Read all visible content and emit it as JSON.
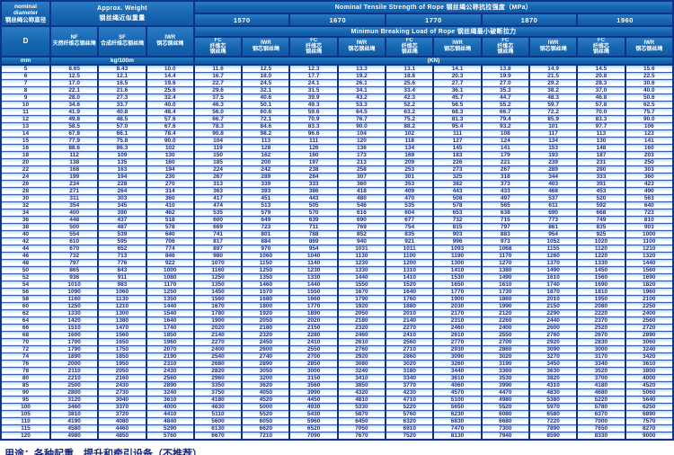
{
  "header": {
    "nominal_diameter": "nominal\ndiameter\n钢丝绳公称直径",
    "d_label": "D",
    "mm_label": "mm",
    "approx_weight": "Approx. Weight\n钢丝绳近似重量",
    "nf_label": "NF\n天然纤维芯钢丝绳",
    "sf_label": "SF\n合成纤维芯钢丝绳",
    "iwr_weight_label": "IWR\n钢芯钢丝绳",
    "kg_label": "kg/100m",
    "tensile_title": "Nominal Tensile Strength of Rope 钢丝绳公称抗拉强度（MPa）",
    "breaking_title": "Minimun Breaking Load of Rope 钢丝绳最小破断拉力",
    "grades": [
      "1570",
      "1670",
      "1770",
      "1870",
      "1960"
    ],
    "fc_label": "FC\n纤维芯\n钢丝绳",
    "iwr_label": "IWR\n钢芯钢丝绳",
    "kn_label": "(KN)"
  },
  "colors": {
    "header_blue": "#1565b0",
    "border_navy": "#0e3487",
    "data_text_navy": "#1e2f85",
    "row_stripe_blue": "#a8cfeb"
  },
  "table": {
    "column_keys": [
      "D_mm",
      "NF",
      "SF",
      "IWR",
      "FC_1570",
      "IWR_1570",
      "FC_1670",
      "IWR_1670",
      "FC_1770",
      "IWR_1770",
      "FC_1870",
      "IWR_1870",
      "FC_1960",
      "IWR_1960"
    ],
    "rows": [
      [
        "5",
        "8.65",
        "8.43",
        "10.0",
        "11.6",
        "12.5",
        "12.3",
        "13.3",
        "13.1",
        "14.1",
        "13.8",
        "14.9",
        "14.5",
        "15.6"
      ],
      [
        "6",
        "12.5",
        "12.1",
        "14.4",
        "16.7",
        "18.0",
        "17.7",
        "19.2",
        "18.8",
        "20.3",
        "19.9",
        "21.5",
        "20.8",
        "22.5"
      ],
      [
        "7",
        "17.0",
        "16.5",
        "19.6",
        "22.7",
        "24.5",
        "24.1",
        "26.1",
        "25.6",
        "27.7",
        "27.0",
        "29.2",
        "28.3",
        "30.6"
      ],
      [
        "8",
        "22.1",
        "21.6",
        "25.6",
        "29.6",
        "32.1",
        "31.5",
        "34.1",
        "33.4",
        "36.1",
        "35.3",
        "38.2",
        "37.0",
        "40.0"
      ],
      [
        "9",
        "28.0",
        "27.3",
        "32.4",
        "37.5",
        "40.6",
        "39.9",
        "43.2",
        "42.3",
        "45.7",
        "44.7",
        "48.3",
        "46.8",
        "50.6"
      ],
      [
        "10",
        "34.6",
        "33.7",
        "40.0",
        "46.3",
        "50.1",
        "49.3",
        "53.3",
        "52.2",
        "56.5",
        "55.2",
        "59.7",
        "57.8",
        "62.5"
      ],
      [
        "11",
        "41.9",
        "40.8",
        "48.4",
        "56.0",
        "60.6",
        "59.6",
        "64.5",
        "63.2",
        "68.3",
        "66.7",
        "72.2",
        "70.0",
        "75.7"
      ],
      [
        "12",
        "49.8",
        "48.5",
        "57.6",
        "66.7",
        "72.1",
        "70.9",
        "76.7",
        "75.2",
        "81.3",
        "79.4",
        "85.9",
        "83.3",
        "90.0"
      ],
      [
        "13",
        "58.5",
        "57.0",
        "67.6",
        "78.3",
        "84.6",
        "83.3",
        "90.0",
        "88.2",
        "95.4",
        "93.2",
        "101",
        "97.7",
        "106"
      ],
      [
        "14",
        "67.8",
        "66.1",
        "78.4",
        "90.8",
        "98.2",
        "96.6",
        "104",
        "102",
        "111",
        "108",
        "117",
        "113",
        "123"
      ],
      [
        "15",
        "77.9",
        "75.8",
        "90.0",
        "104",
        "113",
        "111",
        "120",
        "118",
        "127",
        "124",
        "134",
        "130",
        "141"
      ],
      [
        "16",
        "88.6",
        "86.3",
        "102",
        "119",
        "128",
        "126",
        "136",
        "134",
        "145",
        "141",
        "153",
        "148",
        "160"
      ],
      [
        "18",
        "112",
        "109",
        "130",
        "150",
        "162",
        "160",
        "173",
        "169",
        "183",
        "179",
        "193",
        "187",
        "203"
      ],
      [
        "20",
        "138",
        "135",
        "160",
        "185",
        "200",
        "197",
        "213",
        "209",
        "226",
        "221",
        "239",
        "231",
        "250"
      ],
      [
        "22",
        "168",
        "163",
        "194",
        "224",
        "242",
        "238",
        "258",
        "253",
        "273",
        "267",
        "289",
        "280",
        "303"
      ],
      [
        "24",
        "199",
        "194",
        "230",
        "267",
        "289",
        "284",
        "307",
        "301",
        "325",
        "318",
        "344",
        "333",
        "360"
      ],
      [
        "26",
        "234",
        "228",
        "270",
        "313",
        "339",
        "333",
        "360",
        "353",
        "382",
        "373",
        "403",
        "391",
        "423"
      ],
      [
        "28",
        "271",
        "264",
        "314",
        "363",
        "393",
        "386",
        "418",
        "409",
        "443",
        "433",
        "468",
        "453",
        "490"
      ],
      [
        "30",
        "311",
        "303",
        "360",
        "417",
        "451",
        "443",
        "480",
        "470",
        "508",
        "497",
        "537",
        "520",
        "563"
      ],
      [
        "32",
        "354",
        "345",
        "410",
        "474",
        "513",
        "505",
        "546",
        "535",
        "578",
        "565",
        "611",
        "592",
        "640"
      ],
      [
        "34",
        "400",
        "390",
        "462",
        "535",
        "579",
        "570",
        "616",
        "604",
        "653",
        "638",
        "690",
        "668",
        "723"
      ],
      [
        "36",
        "448",
        "437",
        "518",
        "600",
        "649",
        "639",
        "690",
        "677",
        "732",
        "715",
        "773",
        "749",
        "810"
      ],
      [
        "38",
        "500",
        "487",
        "578",
        "669",
        "723",
        "711",
        "769",
        "754",
        "815",
        "797",
        "861",
        "835",
        "903"
      ],
      [
        "40",
        "554",
        "539",
        "640",
        "741",
        "801",
        "788",
        "852",
        "835",
        "903",
        "883",
        "954",
        "925",
        "1000"
      ],
      [
        "42",
        "610",
        "595",
        "706",
        "817",
        "884",
        "869",
        "940",
        "921",
        "996",
        "973",
        "1052",
        "1020",
        "1100"
      ],
      [
        "44",
        "670",
        "652",
        "774",
        "897",
        "970",
        "954",
        "1031",
        "1011",
        "1093",
        "1068",
        "1155",
        "1120",
        "1210"
      ],
      [
        "46",
        "732",
        "713",
        "846",
        "980",
        "1060",
        "1040",
        "1130",
        "1100",
        "1190",
        "1170",
        "1260",
        "1220",
        "1320"
      ],
      [
        "48",
        "797",
        "776",
        "922",
        "1070",
        "1150",
        "1140",
        "1230",
        "1200",
        "1300",
        "1270",
        "1370",
        "1330",
        "1440"
      ],
      [
        "50",
        "865",
        "843",
        "1000",
        "1160",
        "1250",
        "1230",
        "1330",
        "1310",
        "1410",
        "1380",
        "1490",
        "1450",
        "1560"
      ],
      [
        "52",
        "936",
        "911",
        "1080",
        "1250",
        "1350",
        "1330",
        "1440",
        "1410",
        "1530",
        "1490",
        "1610",
        "1560",
        "1690"
      ],
      [
        "54",
        "1010",
        "983",
        "1170",
        "1350",
        "1460",
        "1440",
        "1550",
        "1520",
        "1650",
        "1610",
        "1740",
        "1690",
        "1820"
      ],
      [
        "56",
        "1090",
        "1060",
        "1250",
        "1450",
        "1570",
        "1550",
        "1670",
        "1640",
        "1770",
        "1730",
        "1870",
        "1810",
        "1960"
      ],
      [
        "58",
        "1160",
        "1130",
        "1350",
        "1560",
        "1680",
        "1660",
        "1790",
        "1760",
        "1900",
        "1860",
        "2010",
        "1950",
        "2100"
      ],
      [
        "60",
        "1250",
        "1210",
        "1440",
        "1670",
        "1800",
        "1770",
        "1920",
        "1880",
        "2030",
        "1990",
        "2150",
        "2080",
        "2250"
      ],
      [
        "62",
        "1330",
        "1300",
        "1540",
        "1780",
        "1920",
        "1890",
        "2050",
        "2010",
        "2170",
        "2120",
        "2290",
        "2220",
        "2400"
      ],
      [
        "64",
        "1420",
        "1380",
        "1640",
        "1900",
        "2050",
        "2020",
        "2180",
        "2140",
        "2310",
        "2260",
        "2440",
        "2370",
        "2560"
      ],
      [
        "66",
        "1510",
        "1470",
        "1740",
        "2020",
        "2180",
        "2150",
        "2320",
        "2270",
        "2460",
        "2400",
        "2600",
        "2520",
        "2720"
      ],
      [
        "68",
        "1600",
        "1560",
        "1850",
        "2140",
        "2320",
        "2280",
        "2460",
        "2410",
        "2610",
        "2550",
        "2760",
        "2670",
        "2890"
      ],
      [
        "70",
        "1700",
        "1650",
        "1960",
        "2270",
        "2450",
        "2410",
        "2610",
        "2560",
        "2770",
        "2700",
        "2920",
        "2830",
        "3060"
      ],
      [
        "72",
        "1790",
        "1750",
        "2070",
        "2400",
        "2600",
        "2550",
        "2760",
        "2710",
        "2930",
        "2860",
        "3090",
        "3000",
        "3240"
      ],
      [
        "74",
        "1890",
        "1850",
        "2190",
        "2540",
        "2740",
        "2700",
        "2920",
        "2860",
        "3090",
        "3020",
        "3270",
        "3170",
        "3420"
      ],
      [
        "76",
        "2000",
        "1950",
        "2310",
        "2680",
        "2890",
        "2850",
        "3080",
        "3020",
        "3260",
        "3190",
        "3450",
        "3340",
        "3610"
      ],
      [
        "78",
        "2110",
        "2050",
        "2430",
        "2820",
        "3050",
        "3000",
        "3240",
        "3180",
        "3440",
        "3360",
        "3630",
        "3520",
        "3800"
      ],
      [
        "80",
        "2210",
        "2160",
        "2560",
        "2960",
        "3200",
        "3150",
        "3410",
        "3340",
        "3610",
        "3530",
        "3820",
        "3700",
        "4000"
      ],
      [
        "85",
        "2500",
        "2430",
        "2890",
        "3350",
        "3620",
        "3560",
        "3850",
        "3770",
        "4060",
        "3990",
        "4310",
        "4180",
        "4520"
      ],
      [
        "90",
        "2800",
        "2730",
        "3240",
        "3750",
        "4050",
        "3990",
        "4320",
        "4230",
        "4570",
        "4470",
        "4830",
        "4680",
        "5060"
      ],
      [
        "95",
        "3120",
        "3040",
        "3610",
        "4180",
        "4520",
        "4450",
        "4810",
        "4710",
        "5100",
        "4980",
        "5380",
        "5220",
        "5640"
      ],
      [
        "100",
        "3460",
        "3370",
        "4000",
        "4630",
        "5000",
        "4930",
        "5330",
        "5220",
        "5650",
        "5520",
        "5970",
        "5780",
        "6250"
      ],
      [
        "105",
        "3810",
        "3720",
        "4410",
        "5110",
        "5520",
        "5430",
        "5870",
        "5760",
        "6230",
        "6080",
        "6580",
        "6370",
        "6890"
      ],
      [
        "110",
        "4190",
        "4080",
        "4840",
        "5600",
        "6050",
        "5960",
        "6450",
        "6320",
        "6830",
        "6680",
        "7220",
        "7000",
        "7570"
      ],
      [
        "115",
        "4580",
        "4460",
        "5290",
        "6130",
        "6620",
        "6520",
        "7050",
        "6910",
        "7470",
        "7300",
        "7890",
        "7650",
        "8270"
      ],
      [
        "120",
        "4980",
        "4850",
        "5760",
        "6670",
        "7210",
        "7090",
        "7670",
        "7520",
        "8130",
        "7940",
        "8590",
        "8330",
        "9000"
      ]
    ]
  },
  "footer": {
    "usage_text": "用途：各种起重、提升和牵引设备（不推荐）"
  }
}
